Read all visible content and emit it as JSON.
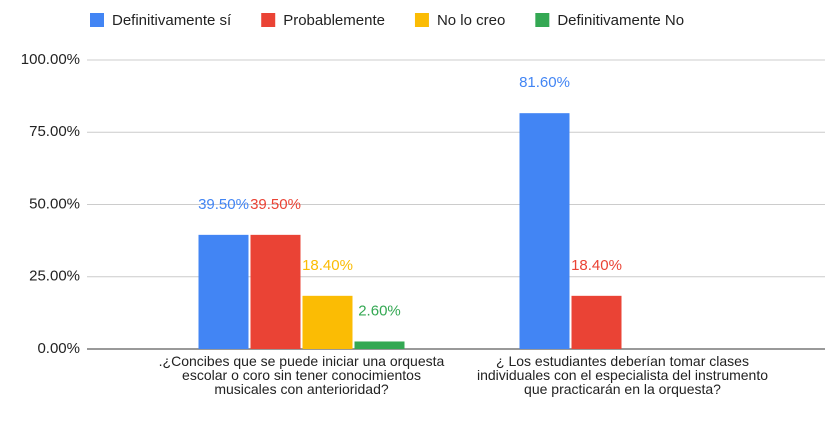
{
  "chart_data": {
    "type": "bar",
    "categories": [
      ".¿Concibes que se puede iniciar una orquesta escolar o coro  sin tener conocimientos  musicales con anterioridad?",
      "¿ Los estudiantes deberían tomar clases individuales con el especialista del instrumento que practicarán en la orquesta?"
    ],
    "series": [
      {
        "name": "Definitivamente sí",
        "color": "#4285f4",
        "values": [
          39.5,
          81.6
        ],
        "value_labels": [
          "39.50%",
          "81.60%"
        ]
      },
      {
        "name": "Probablemente",
        "color": "#ea4335",
        "values": [
          39.5,
          18.4
        ],
        "value_labels": [
          "39.50%",
          "18.40%"
        ]
      },
      {
        "name": "No lo creo",
        "color": "#fbbc04",
        "values": [
          18.4,
          null
        ],
        "value_labels": [
          "18.40%",
          null
        ]
      },
      {
        "name": "Definitivamente No",
        "color": "#34a853",
        "values": [
          2.6,
          null
        ],
        "value_labels": [
          "2.60%",
          null
        ]
      }
    ],
    "ylim": [
      0,
      100
    ],
    "yticks": [
      {
        "value": 0,
        "label": "0.00%"
      },
      {
        "value": 25,
        "label": "25.00%"
      },
      {
        "value": 50,
        "label": "50.00%"
      },
      {
        "value": 75,
        "label": "75.00%"
      },
      {
        "value": 100,
        "label": "100.00%"
      }
    ],
    "grid": true,
    "legend": "top"
  }
}
